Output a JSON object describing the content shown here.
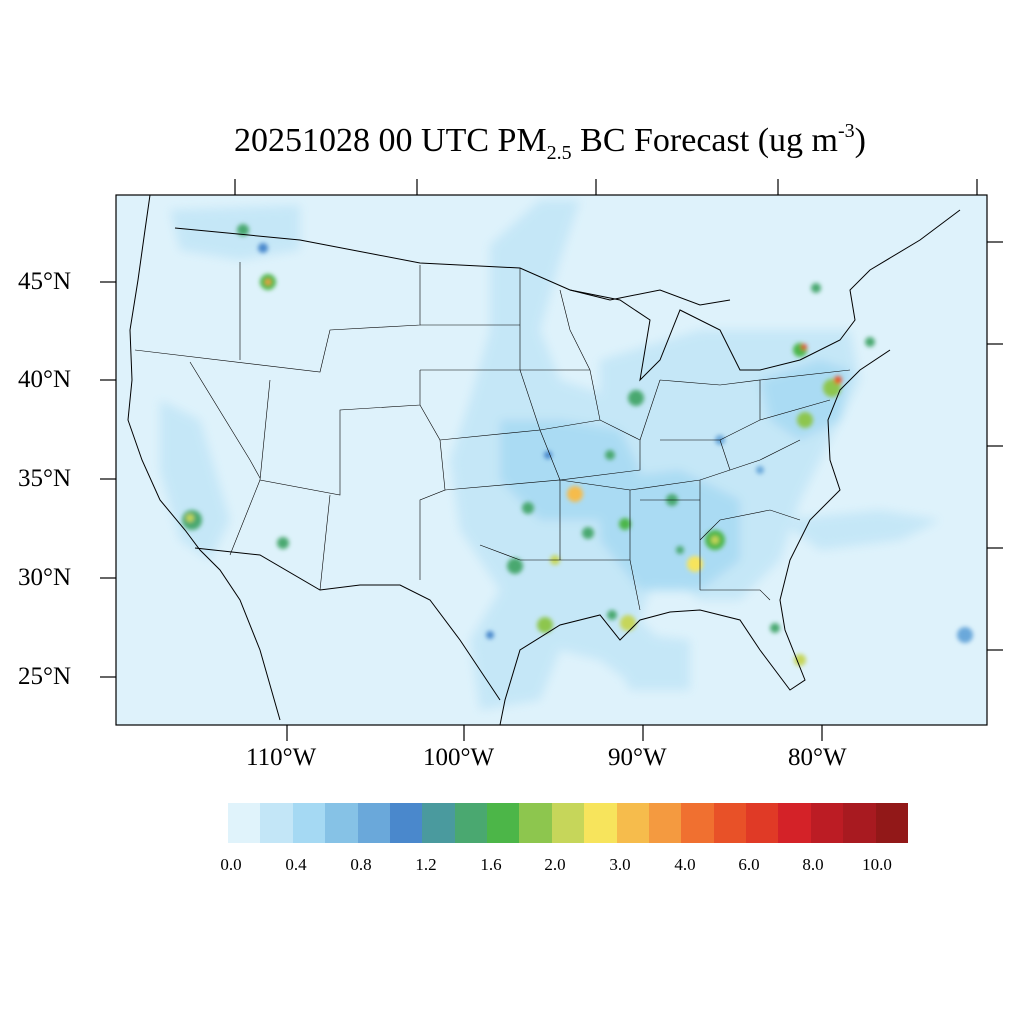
{
  "title": {
    "prefix": "20251028 00 UTC PM",
    "subscript": "2.5",
    "middle": " BC Forecast (ug m",
    "superscript": "-3",
    "suffix": ")"
  },
  "axes": {
    "lat_labels": [
      "45°N",
      "40°N",
      "35°N",
      "30°N",
      "25°N"
    ],
    "lon_labels": [
      "110°W",
      "100°W",
      "90°W",
      "80°W"
    ]
  },
  "colorbar": {
    "colors": [
      "#e0f3fb",
      "#c3e6f7",
      "#a5d9f3",
      "#86c2e6",
      "#6aa8da",
      "#4a88cc",
      "#4a9a9e",
      "#4aa870",
      "#4cb648",
      "#8dc64e",
      "#c6d65a",
      "#f7e45c",
      "#f6bc4c",
      "#f49a40",
      "#f07030",
      "#e85128",
      "#e03a26",
      "#d42228",
      "#bc1c24",
      "#a81a20",
      "#921818"
    ],
    "tick_labels": [
      "0.0",
      "0.4",
      "0.8",
      "1.2",
      "1.6",
      "2.0",
      "3.0",
      "4.0",
      "6.0",
      "8.0",
      "10.0"
    ]
  },
  "map": {
    "background_color": "#def2fb",
    "frame_color": "#000000"
  }
}
